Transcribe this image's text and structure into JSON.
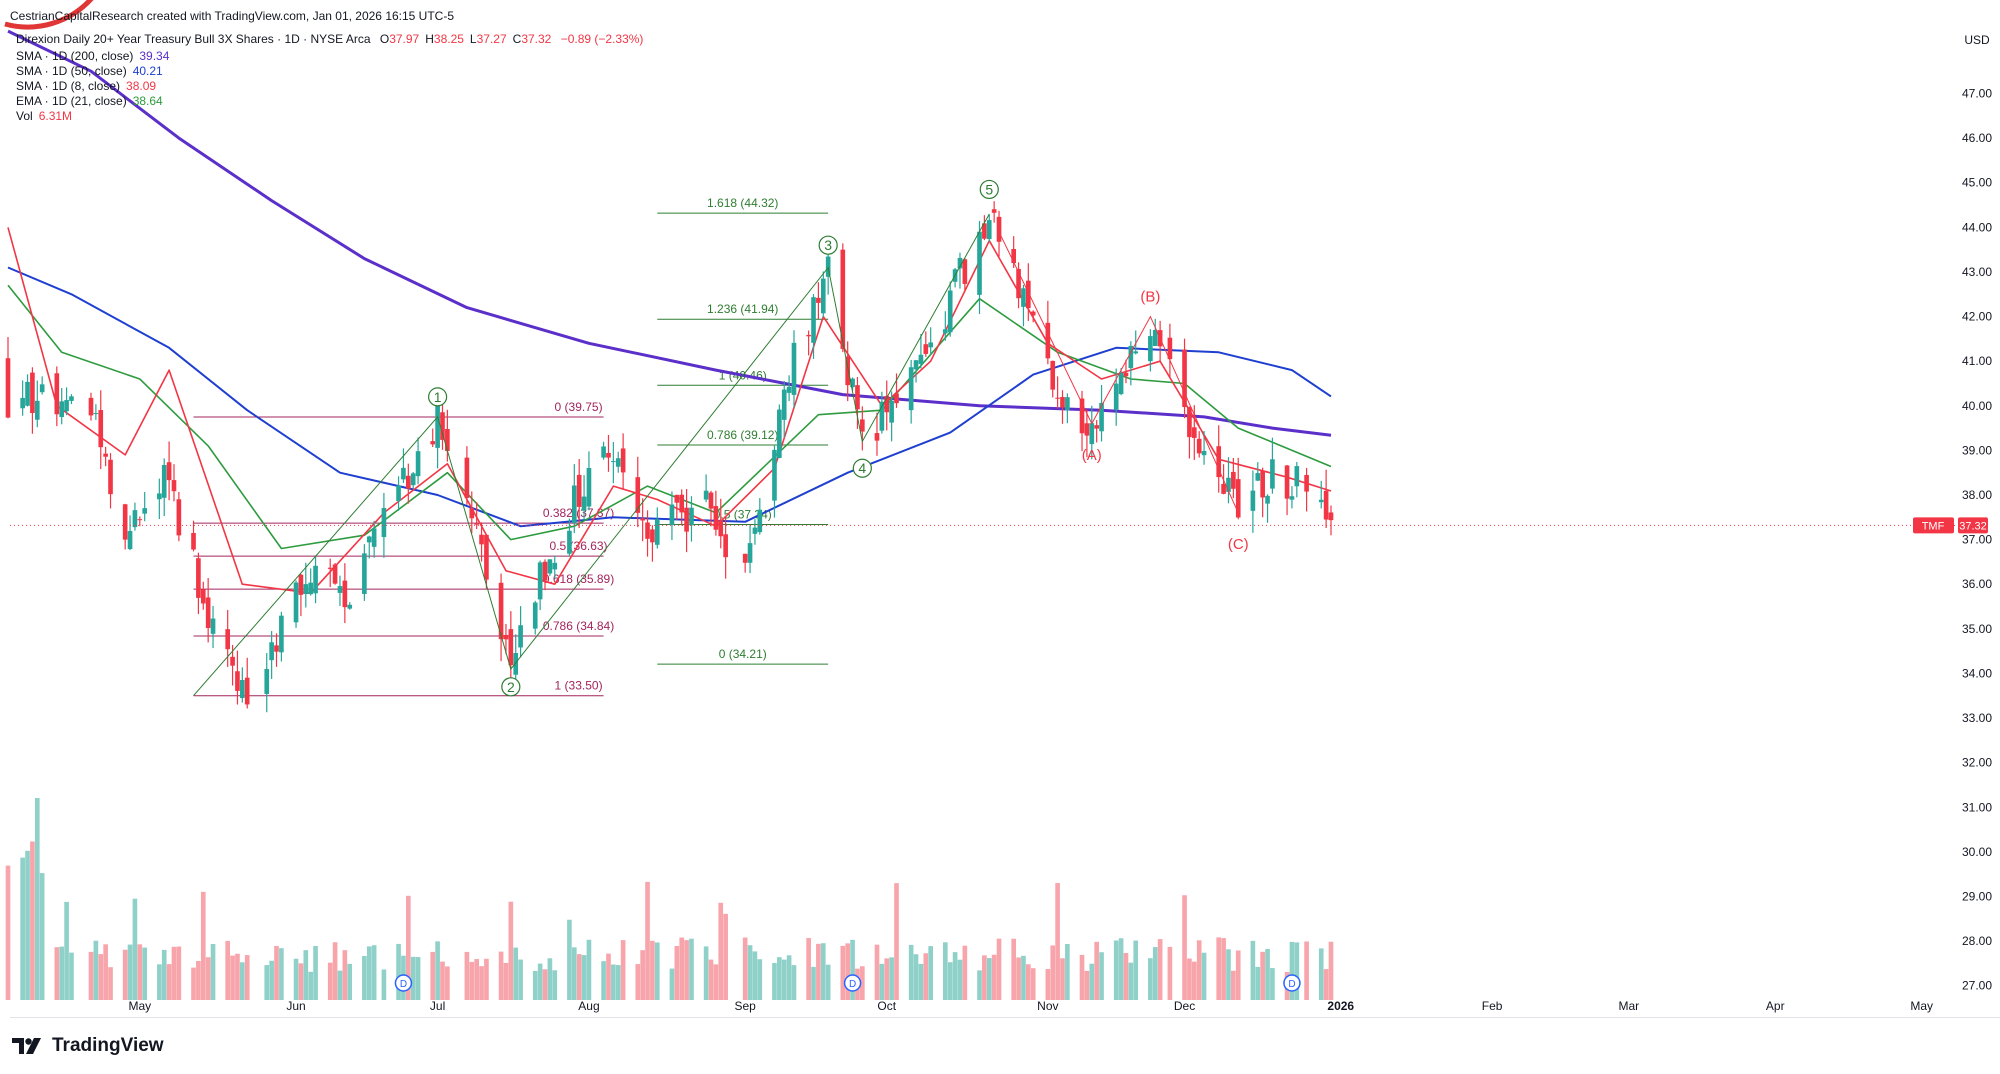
{
  "credit": "CestrianCapitalResearch created with TradingView.com, Jan 01, 2026 16:15 UTC-5",
  "header": {
    "title": "Direxion Daily 20+ Year Treasury Bull 3X Shares · 1D · NYSE Arca",
    "ohlc": [
      {
        "k": "O",
        "v": "37.97"
      },
      {
        "k": "H",
        "v": "38.25"
      },
      {
        "k": "L",
        "v": "37.27"
      },
      {
        "k": "C",
        "v": "37.32"
      }
    ],
    "change": "−0.89 (−2.33%)",
    "indicators": [
      {
        "label": "SMA · 1D (200, close)",
        "value": "39.34",
        "color": "#5b2fc9"
      },
      {
        "label": "SMA · 1D (50, close)",
        "value": "40.21",
        "color": "#1e3fd0"
      },
      {
        "label": "SMA · 1D (8, close)",
        "value": "38.09",
        "color": "#f23645"
      },
      {
        "label": "EMA · 1D (21, close)",
        "value": "38.64",
        "color": "#2e9b3f"
      },
      {
        "label": "Vol",
        "value": "6.31M",
        "color": "#f23645"
      }
    ]
  },
  "price_axis": {
    "currency": "USD",
    "ticks": [
      "47.00",
      "46.00",
      "45.00",
      "44.00",
      "43.00",
      "42.00",
      "41.00",
      "40.00",
      "39.00",
      "38.00",
      "37.00",
      "36.00",
      "35.00",
      "34.00",
      "33.00",
      "32.00",
      "31.00",
      "30.00",
      "29.00",
      "28.00",
      "27.00"
    ],
    "last_symbol": "TMF",
    "last_value": "37.32"
  },
  "time_axis": {
    "labels": [
      {
        "t": "May",
        "bold": false,
        "date": "2025-05-01"
      },
      {
        "t": "Jun",
        "bold": false,
        "date": "2025-06-02"
      },
      {
        "t": "Jul",
        "bold": false,
        "date": "2025-07-01"
      },
      {
        "t": "Aug",
        "bold": false,
        "date": "2025-08-01"
      },
      {
        "t": "Sep",
        "bold": false,
        "date": "2025-09-02"
      },
      {
        "t": "Oct",
        "bold": false,
        "date": "2025-10-01"
      },
      {
        "t": "Nov",
        "bold": false,
        "date": "2025-11-03"
      },
      {
        "t": "Dec",
        "bold": false,
        "date": "2025-12-01"
      },
      {
        "t": "2026",
        "bold": true,
        "date": "2026-01-02"
      },
      {
        "t": "Feb",
        "bold": false,
        "date": "2026-02-02"
      },
      {
        "t": "Mar",
        "bold": false,
        "date": "2026-03-02"
      },
      {
        "t": "Apr",
        "bold": false,
        "date": "2026-04-01"
      },
      {
        "t": "May",
        "bold": false,
        "date": "2026-05-01"
      }
    ]
  },
  "brand": {
    "name": "TradingView"
  },
  "colors": {
    "up": "#26a69a",
    "down": "#f23645",
    "fib_low": "#a3245c",
    "fib_high": "#2e7d32",
    "wave": "#2e7d32",
    "corr": "#f23645"
  },
  "chart_data": {
    "type": "candlestick",
    "symbol": "TMF",
    "interval": "1D",
    "ylim": [
      26.5,
      48.2
    ],
    "pivots": [
      {
        "date": "2025-04-21",
        "price": 40.1
      },
      {
        "date": "2025-04-28",
        "price": 36.8
      },
      {
        "date": "2025-05-06",
        "price": 38.7
      },
      {
        "date": "2025-05-13",
        "price": 36.0
      },
      {
        "date": "2025-05-22",
        "price": 33.5
      },
      {
        "date": "2025-06-05",
        "price": 36.3
      },
      {
        "date": "2025-06-13",
        "price": 35.8
      },
      {
        "date": "2025-07-01",
        "price": 39.75
      },
      {
        "date": "2025-07-08",
        "price": 37.7
      },
      {
        "date": "2025-07-16",
        "price": 34.1
      },
      {
        "date": "2025-07-23",
        "price": 36.4
      },
      {
        "date": "2025-08-04",
        "price": 39.2
      },
      {
        "date": "2025-08-13",
        "price": 37.2
      },
      {
        "date": "2025-08-25",
        "price": 37.7
      },
      {
        "date": "2025-09-02",
        "price": 36.4
      },
      {
        "date": "2025-09-10",
        "price": 40.4
      },
      {
        "date": "2025-09-19",
        "price": 43.1
      },
      {
        "date": "2025-09-26",
        "price": 39.2
      },
      {
        "date": "2025-10-09",
        "price": 41.2
      },
      {
        "date": "2025-10-22",
        "price": 44.3
      },
      {
        "date": "2025-10-29",
        "price": 42.4
      },
      {
        "date": "2025-11-04",
        "price": 40.4
      },
      {
        "date": "2025-11-12",
        "price": 39.6
      },
      {
        "date": "2025-11-24",
        "price": 41.9
      },
      {
        "date": "2025-12-01",
        "price": 39.8
      },
      {
        "date": "2025-12-12",
        "price": 37.6
      },
      {
        "date": "2025-12-19",
        "price": 38.5
      },
      {
        "date": "2025-12-26",
        "price": 38.1
      },
      {
        "date": "2025-12-31",
        "price": 37.32
      }
    ],
    "ma_lines": [
      {
        "name": "SMA 200",
        "color": "#5b2fc9",
        "width": 3,
        "points": [
          [
            "2025-04-04",
            48.4
          ],
          [
            "2025-04-21",
            47.5
          ],
          [
            "2025-05-09",
            46.0
          ],
          [
            "2025-05-28",
            44.6
          ],
          [
            "2025-06-16",
            43.3
          ],
          [
            "2025-07-07",
            42.2
          ],
          [
            "2025-08-01",
            41.4
          ],
          [
            "2025-08-27",
            40.8
          ],
          [
            "2025-09-22",
            40.25
          ],
          [
            "2025-10-20",
            40.0
          ],
          [
            "2025-11-14",
            39.9
          ],
          [
            "2025-12-05",
            39.75
          ],
          [
            "2025-12-19",
            39.5
          ],
          [
            "2025-12-31",
            39.34
          ]
        ]
      },
      {
        "name": "SMA 50",
        "color": "#1e3fd0",
        "width": 2,
        "points": [
          [
            "2025-04-04",
            43.1
          ],
          [
            "2025-04-17",
            42.5
          ],
          [
            "2025-05-07",
            41.3
          ],
          [
            "2025-05-23",
            39.9
          ],
          [
            "2025-06-11",
            38.5
          ],
          [
            "2025-07-01",
            38.0
          ],
          [
            "2025-07-18",
            37.3
          ],
          [
            "2025-08-06",
            37.5
          ],
          [
            "2025-09-02",
            37.4
          ],
          [
            "2025-09-23",
            38.5
          ],
          [
            "2025-10-14",
            39.4
          ],
          [
            "2025-10-31",
            40.7
          ],
          [
            "2025-11-17",
            41.3
          ],
          [
            "2025-12-08",
            41.2
          ],
          [
            "2025-12-23",
            40.8
          ],
          [
            "2025-12-31",
            40.21
          ]
        ]
      },
      {
        "name": "EMA 21",
        "color": "#2e9b3f",
        "width": 1.6,
        "points": [
          [
            "2025-04-04",
            42.7
          ],
          [
            "2025-04-15",
            41.2
          ],
          [
            "2025-05-01",
            40.6
          ],
          [
            "2025-05-15",
            39.1
          ],
          [
            "2025-05-30",
            36.8
          ],
          [
            "2025-06-16",
            37.1
          ],
          [
            "2025-07-03",
            38.5
          ],
          [
            "2025-07-16",
            37.0
          ],
          [
            "2025-07-29",
            37.3
          ],
          [
            "2025-08-13",
            38.2
          ],
          [
            "2025-08-27",
            37.6
          ],
          [
            "2025-09-17",
            39.8
          ],
          [
            "2025-09-30",
            39.9
          ],
          [
            "2025-10-20",
            42.4
          ],
          [
            "2025-11-05",
            41.2
          ],
          [
            "2025-11-20",
            40.6
          ],
          [
            "2025-12-01",
            40.5
          ],
          [
            "2025-12-12",
            39.5
          ],
          [
            "2025-12-31",
            38.64
          ]
        ]
      },
      {
        "name": "SMA 8",
        "color": "#f23645",
        "width": 1.6,
        "points": [
          [
            "2025-04-04",
            44.0
          ],
          [
            "2025-04-14",
            40.0
          ],
          [
            "2025-04-28",
            38.9
          ],
          [
            "2025-05-07",
            40.8
          ],
          [
            "2025-05-22",
            36.0
          ],
          [
            "2025-06-05",
            35.8
          ],
          [
            "2025-06-20",
            37.6
          ],
          [
            "2025-07-03",
            38.7
          ],
          [
            "2025-07-15",
            36.3
          ],
          [
            "2025-07-25",
            36.0
          ],
          [
            "2025-08-06",
            38.2
          ],
          [
            "2025-08-15",
            37.9
          ],
          [
            "2025-08-27",
            37.3
          ],
          [
            "2025-09-08",
            38.6
          ],
          [
            "2025-09-18",
            42.0
          ],
          [
            "2025-09-30",
            40.0
          ],
          [
            "2025-10-10",
            41.0
          ],
          [
            "2025-10-22",
            43.7
          ],
          [
            "2025-11-03",
            41.4
          ],
          [
            "2025-11-14",
            40.6
          ],
          [
            "2025-11-26",
            41.0
          ],
          [
            "2025-12-08",
            38.8
          ],
          [
            "2025-12-22",
            38.4
          ],
          [
            "2025-12-31",
            38.09
          ]
        ]
      }
    ],
    "fib_low": {
      "color": "#a3245c",
      "start": "2025-05-12",
      "end": "2025-08-04",
      "levels": [
        {
          "price": 39.75,
          "label": "0 (39.75)"
        },
        {
          "price": 37.37,
          "label": "0.382 (37.37)"
        },
        {
          "price": 36.63,
          "label": "0.5 (36.63)"
        },
        {
          "price": 35.89,
          "label": "0.618 (35.89)"
        },
        {
          "price": 34.84,
          "label": "0.786 (34.84)"
        },
        {
          "price": 33.5,
          "label": "1 (33.50)"
        }
      ]
    },
    "fib_high": {
      "color": "#2e7d32",
      "start": "2025-08-15",
      "end": "2025-09-19",
      "levels": [
        {
          "price": 44.32,
          "label": "1.618 (44.32)"
        },
        {
          "price": 41.94,
          "label": "1.236 (41.94)"
        },
        {
          "price": 40.46,
          "label": "1 (40.46)"
        },
        {
          "price": 39.12,
          "label": "0.786 (39.12)"
        },
        {
          "price": 37.34,
          "label": "0.5 (37.34)"
        },
        {
          "price": 34.21,
          "label": "0 (34.21)"
        }
      ]
    },
    "impulse_path": [
      [
        "2025-05-12",
        33.5
      ],
      [
        "2025-07-01",
        39.75
      ],
      [
        "2025-07-16",
        34.1
      ],
      [
        "2025-09-19",
        43.1
      ],
      [
        "2025-09-26",
        39.2
      ],
      [
        "2025-10-22",
        44.3
      ]
    ],
    "correction_path": [
      [
        "2025-10-24",
        43.9
      ],
      [
        "2025-11-12",
        39.6
      ],
      [
        "2025-11-24",
        42.0
      ],
      [
        "2025-12-12",
        37.6
      ]
    ],
    "wave_labels": [
      {
        "text": "1",
        "date": "2025-07-01",
        "price": 40.2,
        "circle": true,
        "color": "#2e7d32"
      },
      {
        "text": "2",
        "date": "2025-07-16",
        "price": 33.7,
        "circle": true,
        "color": "#2e7d32"
      },
      {
        "text": "3",
        "date": "2025-09-19",
        "price": 43.6,
        "circle": true,
        "color": "#2e7d32"
      },
      {
        "text": "4",
        "date": "2025-09-26",
        "price": 38.6,
        "circle": true,
        "color": "#2e7d32"
      },
      {
        "text": "5",
        "date": "2025-10-22",
        "price": 44.85,
        "circle": true,
        "color": "#2e7d32"
      },
      {
        "text": "(A)",
        "date": "2025-11-12",
        "price": 38.9,
        "circle": false,
        "color": "#f23645"
      },
      {
        "text": "(B)",
        "date": "2025-11-24",
        "price": 42.45,
        "circle": false,
        "color": "#f23645"
      },
      {
        "text": "(C)",
        "date": "2025-12-12",
        "price": 36.9,
        "circle": false,
        "color": "#f23645"
      }
    ],
    "last_price": 37.32,
    "dividends": [
      "2025-06-24",
      "2025-09-24",
      "2025-12-23"
    ]
  }
}
